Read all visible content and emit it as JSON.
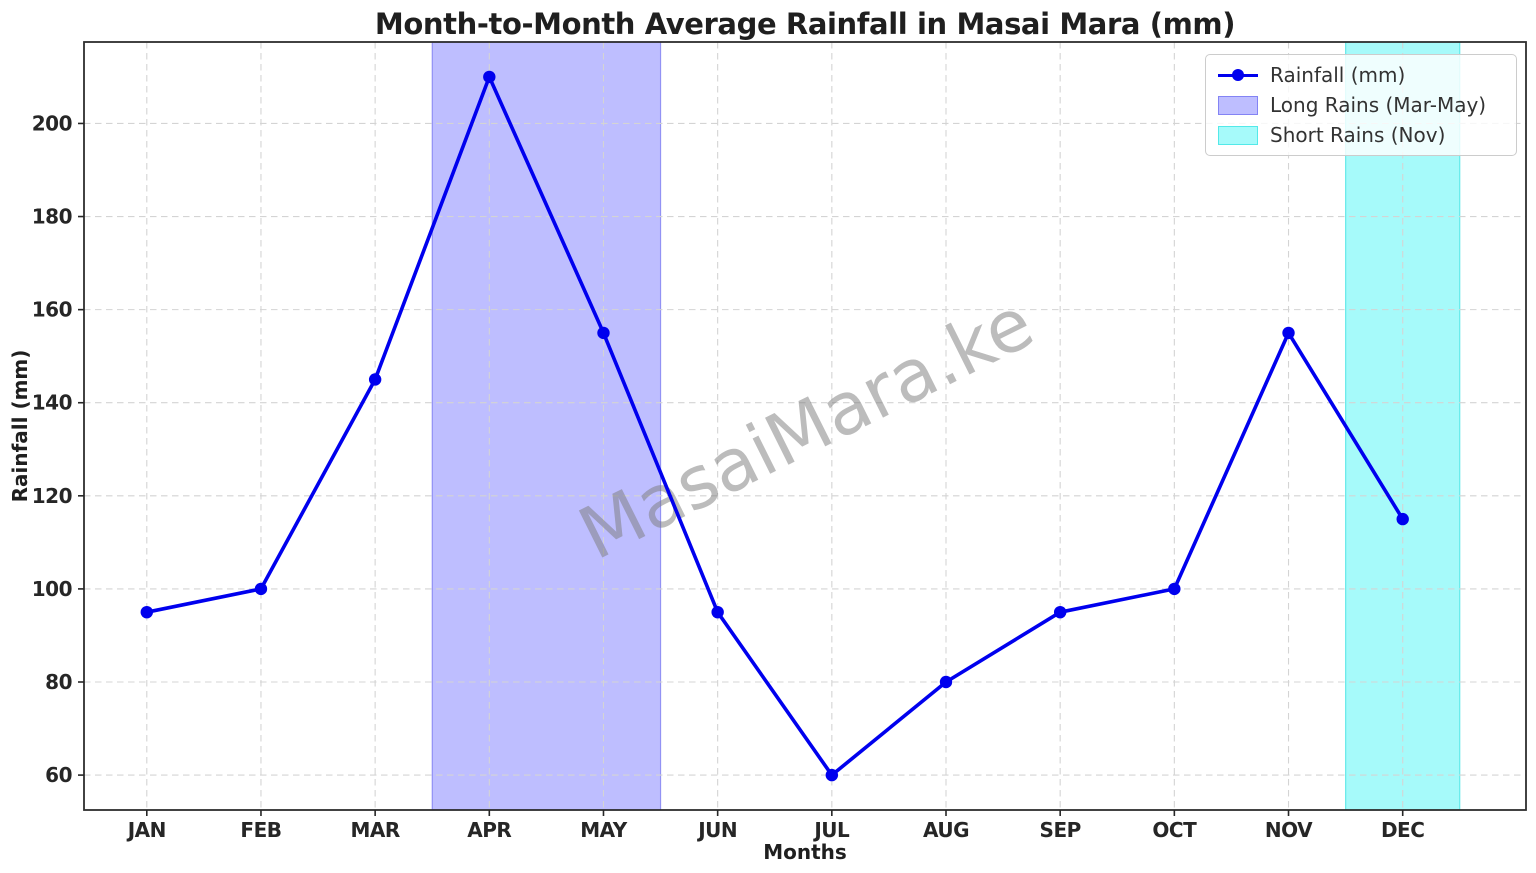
{
  "watermark": "MasaiMara.ke",
  "chart_data": {
    "type": "line",
    "title": "Month-to-Month Average Rainfall in Masai Mara (mm)",
    "xlabel": "Months",
    "ylabel": "Rainfall (mm)",
    "categories": [
      "JAN",
      "FEB",
      "MAR",
      "APR",
      "MAY",
      "JUN",
      "JUL",
      "AUG",
      "SEP",
      "OCT",
      "NOV",
      "DEC"
    ],
    "series": [
      {
        "name": "Rainfall (mm)",
        "values": [
          95,
          100,
          145,
          210,
          155,
          95,
          60,
          80,
          95,
          100,
          155,
          115
        ],
        "color": "#0000ee",
        "marker": "circle"
      }
    ],
    "yticks": [
      60,
      80,
      100,
      120,
      140,
      160,
      180,
      200
    ],
    "ylim": [
      52.5,
      217.5
    ],
    "xlim": [
      0.45,
      13.08
    ],
    "grid": true,
    "grid_style": "dashed",
    "legend_position": "upper right",
    "regions": [
      {
        "label": "Long Rains (Mar-May)",
        "x_start": 3.5,
        "x_end": 5.5,
        "fill": "rgba(40,40,255,0.30)",
        "edge": "rgba(60,60,230,0.45)"
      },
      {
        "label": "Short Rains (Nov)",
        "x_start": 11.5,
        "x_end": 12.5,
        "fill": "rgba(0,240,240,0.35)",
        "edge": "rgba(0,215,215,0.50)"
      }
    ]
  }
}
